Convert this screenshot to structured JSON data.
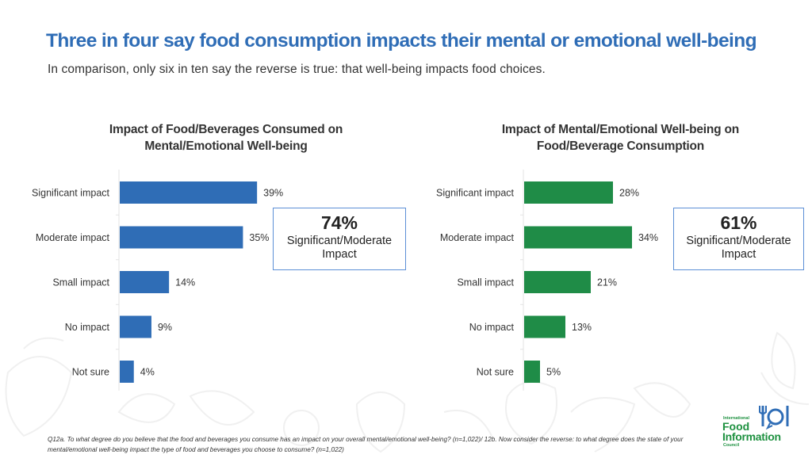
{
  "header": {
    "title": "Three in four say food consumption impacts their mental or emotional well-being",
    "subtitle": "In comparison, only six in ten say the reverse is true: that well-being impacts food choices."
  },
  "colors": {
    "title": "#2f6db6",
    "left_bar": "#2f6db6",
    "right_bar": "#1f8c47",
    "callout_border": "#5b8fd6",
    "logo": "#1e9140",
    "logo_icon": "#2f6db6"
  },
  "chart_data": [
    {
      "type": "bar",
      "orientation": "horizontal",
      "title": "Impact of Food/Beverages Consumed on Mental/Emotional Well-being",
      "title_lines": [
        "Impact of Food/Beverages Consumed on",
        "Mental/Emotional Well-being"
      ],
      "categories": [
        "Significant impact",
        "Moderate impact",
        "Small impact",
        "No impact",
        "Not sure"
      ],
      "values": [
        39,
        35,
        14,
        9,
        4
      ],
      "value_labels": [
        "39%",
        "35%",
        "14%",
        "9%",
        "4%"
      ],
      "xlabel": "",
      "ylabel": "",
      "xlim": [
        0,
        100
      ],
      "grid": false,
      "callout": {
        "value": "74%",
        "label_lines": [
          "Significant/Moderate",
          "Impact"
        ]
      }
    },
    {
      "type": "bar",
      "orientation": "horizontal",
      "title": "Impact of Mental/Emotional Well-being on Food/Beverage Consumption",
      "title_lines": [
        "Impact of Mental/Emotional Well-being on",
        "Food/Beverage Consumption"
      ],
      "categories": [
        "Significant impact",
        "Moderate impact",
        "Small impact",
        "No impact",
        "Not sure"
      ],
      "values": [
        28,
        34,
        21,
        13,
        5
      ],
      "value_labels": [
        "28%",
        "34%",
        "21%",
        "13%",
        "5%"
      ],
      "xlabel": "",
      "ylabel": "",
      "xlim": [
        0,
        100
      ],
      "grid": false,
      "callout": {
        "value": "61%",
        "label_lines": [
          "Significant/Moderate",
          "Impact"
        ]
      }
    }
  ],
  "footnote": "Q12a. To what degree do you believe that the food and beverages you consume has an impact on your overall mental/emotional well-being? (n=1,022)/ 12b. Now consider the reverse: to what degree does the state of your mental/emotional well-being impact the type of food and beverages you choose to consume? (n=1,022)",
  "logo": {
    "line1": "International",
    "line2": "Food",
    "line3": "Information",
    "line4": "Council"
  }
}
